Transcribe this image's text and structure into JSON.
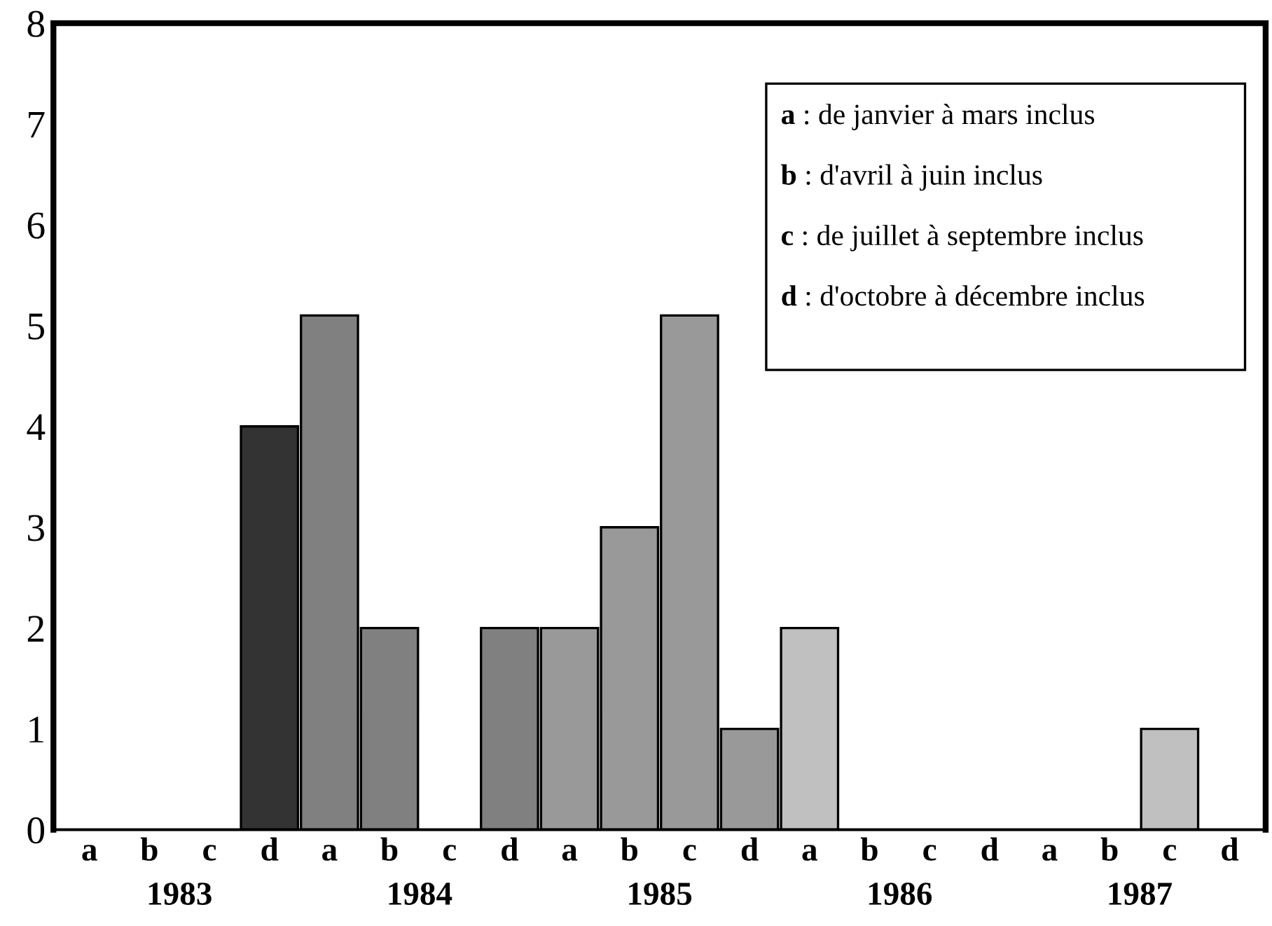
{
  "chart_data": {
    "type": "bar",
    "categories": [
      "a",
      "b",
      "c",
      "d",
      "a",
      "b",
      "c",
      "d",
      "a",
      "b",
      "c",
      "d",
      "a",
      "b",
      "c",
      "d",
      "a",
      "b",
      "c",
      "d"
    ],
    "values": [
      0,
      0,
      0,
      4,
      5.1,
      2,
      0,
      2,
      2,
      3,
      5.1,
      1,
      2,
      0,
      0,
      0,
      0,
      0,
      1,
      0
    ],
    "colors": [
      "#c0c0c0",
      "#c0c0c0",
      "#c0c0c0",
      "#333333",
      "#808080",
      "#808080",
      "#808080",
      "#808080",
      "#999999",
      "#999999",
      "#999999",
      "#999999",
      "#c0c0c0",
      "#c0c0c0",
      "#c0c0c0",
      "#c0c0c0",
      "#c0c0c0",
      "#c0c0c0",
      "#c0c0c0",
      "#c0c0c0"
    ],
    "ylim": [
      0,
      8
    ],
    "yticks": [
      0,
      1,
      2,
      3,
      4,
      5,
      6,
      7,
      8
    ],
    "grid": false,
    "legend": false,
    "annotations": [
      "1983",
      "1984",
      "1985",
      "1986",
      "1987",
      "a : de janvier à mars inclus",
      "b : d'avril à juin inclus",
      "c : de juillet à septembre inclus",
      "d : d'octobre à décembre inclus"
    ]
  }
}
